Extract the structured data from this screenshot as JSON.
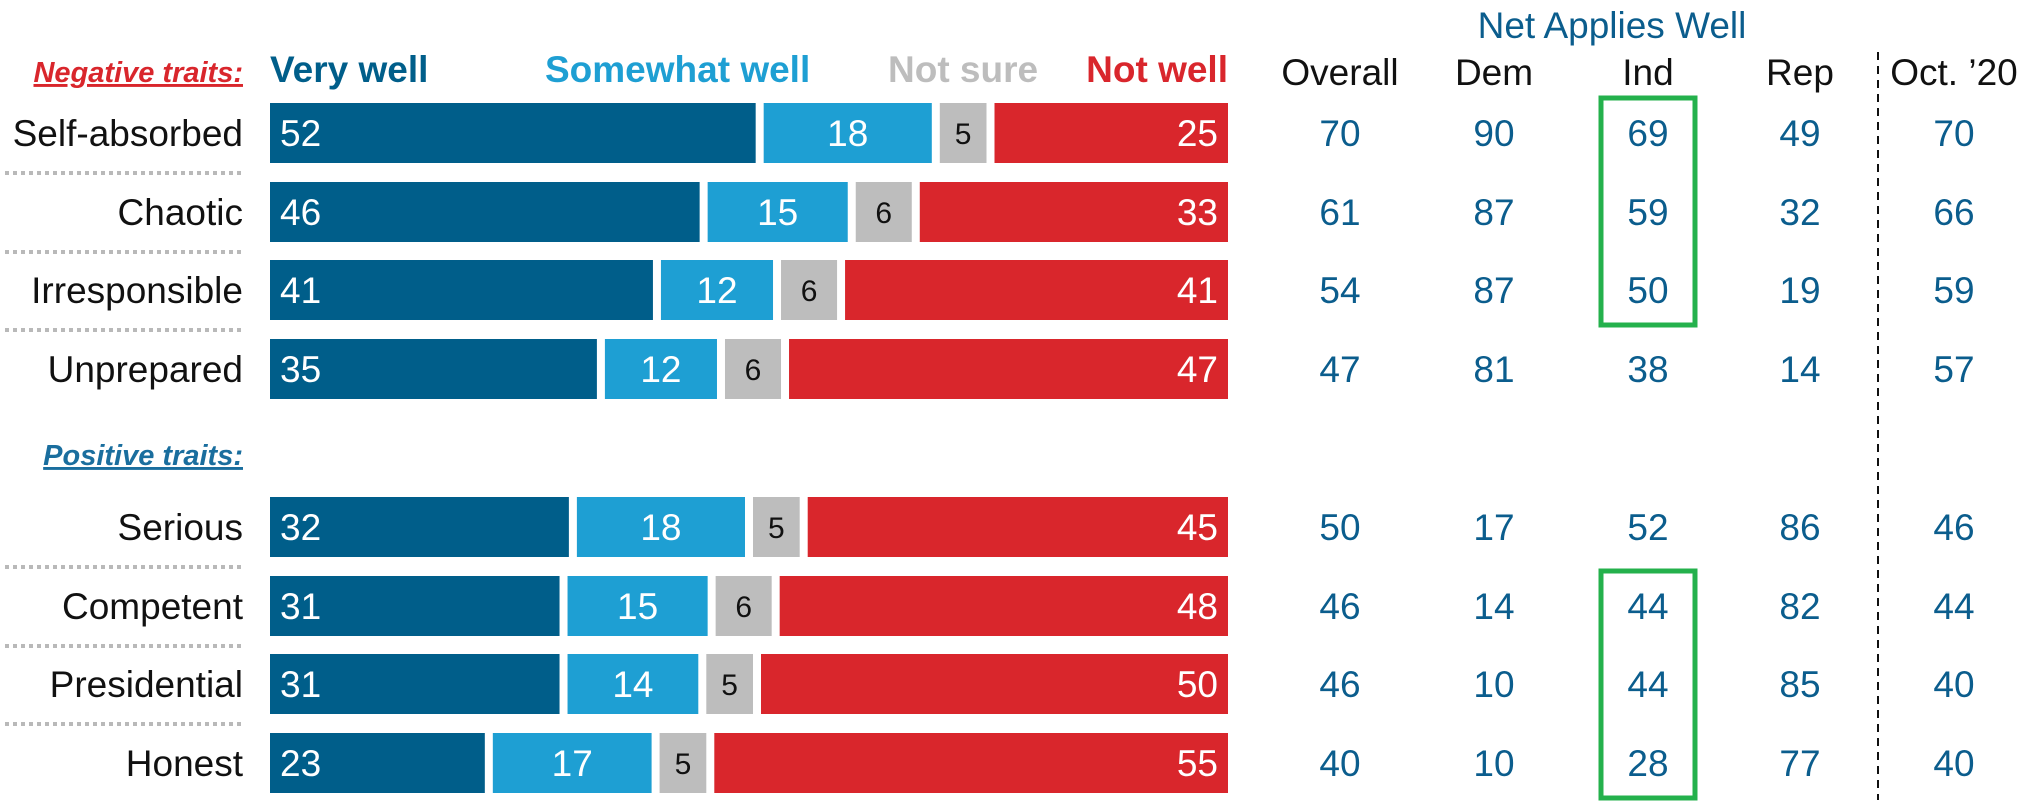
{
  "chart_data": {
    "type": "bar",
    "stacked": true,
    "orientation": "horizontal",
    "legend": [
      "Very well",
      "Somewhat well",
      "Not sure",
      "Not well"
    ],
    "groups": [
      {
        "label": "Negative traits:",
        "color": "#d9262c",
        "rows": [
          {
            "trait": "Self-absorbed",
            "values": [
              52,
              18,
              5,
              25
            ],
            "net": [
              "70",
              "90",
              "69",
              "49"
            ],
            "oct20": "70",
            "ind_highlight": true
          },
          {
            "trait": "Chaotic",
            "values": [
              46,
              15,
              6,
              33
            ],
            "net": [
              "61",
              "87",
              "59",
              "32"
            ],
            "oct20": "66",
            "ind_highlight": true
          },
          {
            "trait": "Irresponsible",
            "values": [
              41,
              12,
              6,
              41
            ],
            "net": [
              "54",
              "87",
              "50",
              "19"
            ],
            "oct20": "59",
            "ind_highlight": true
          },
          {
            "trait": "Unprepared",
            "values": [
              35,
              12,
              6,
              47
            ],
            "net": [
              "47",
              "81",
              "38",
              "14"
            ],
            "oct20": "57",
            "ind_highlight": false
          }
        ]
      },
      {
        "label": "Positive traits:",
        "color": "#1a6e9e",
        "rows": [
          {
            "trait": "Serious",
            "values": [
              32,
              18,
              5,
              45
            ],
            "net": [
              "50",
              "17",
              "52",
              "86"
            ],
            "oct20": "46",
            "ind_highlight": false
          },
          {
            "trait": "Competent",
            "values": [
              31,
              15,
              6,
              48
            ],
            "net": [
              "46",
              "14",
              "44",
              "82"
            ],
            "oct20": "44",
            "ind_highlight": true
          },
          {
            "trait": "Presidential",
            "values": [
              31,
              14,
              5,
              50
            ],
            "net": [
              "46",
              "10",
              "44",
              "85"
            ],
            "oct20": "40",
            "ind_highlight": true
          },
          {
            "trait": "Honest",
            "values": [
              23,
              17,
              5,
              55
            ],
            "net": [
              "40",
              "10",
              "28",
              "77"
            ],
            "oct20": "40",
            "ind_highlight": true
          }
        ]
      }
    ],
    "net_title": "Net Applies Well",
    "net_columns": [
      "Overall",
      "Dem",
      "Ind",
      "Rep"
    ],
    "oct_column": "Oct. ’20"
  },
  "colors": {
    "very_well": "#005e8a",
    "somewhat_well": "#1e9fd3",
    "not_sure": "#bdbdbd",
    "not_well": "#d9262c",
    "net_text": "#0b5d8d",
    "highlight": "#24b14c",
    "legend_very": "#005e8a",
    "legend_somewhat": "#1e9fd3",
    "legend_notsure": "#bdbdbd",
    "legend_notwell": "#d9262c"
  }
}
